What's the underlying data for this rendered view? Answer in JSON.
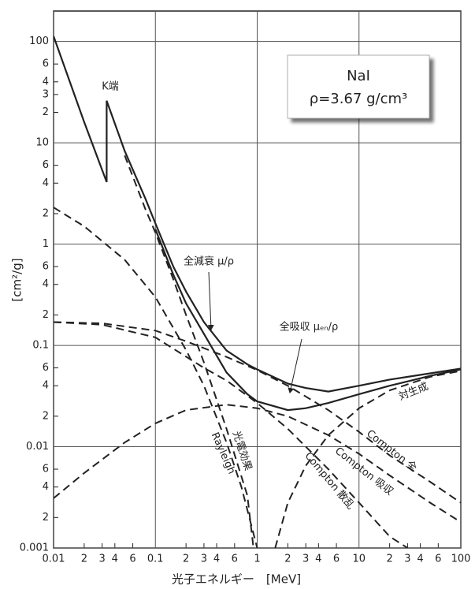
{
  "chart_data": {
    "type": "line",
    "log_x": true,
    "log_y": true,
    "grid": true,
    "xlim": [
      0.01,
      100
    ],
    "ylim": [
      0.001,
      200
    ],
    "x_label": "光子エネルギー　[MeV]",
    "y_label": "[cm²/g]",
    "box_lines": [
      "NaI",
      "ρ=3.67 g/cm³"
    ],
    "annotations": [
      "K端"
    ],
    "xticks": [
      0.01,
      {
        "value": 0.02,
        "label": "2"
      },
      {
        "value": 0.03,
        "label": "3"
      },
      {
        "value": 0.04,
        "label": "4"
      },
      {
        "value": 0.06,
        "label": "6"
      },
      0.1,
      {
        "value": 0.2,
        "label": "2"
      },
      {
        "value": 0.3,
        "label": "3"
      },
      {
        "value": 0.4,
        "label": "4"
      },
      {
        "value": 0.6,
        "label": "6"
      },
      1,
      2,
      3,
      4,
      6,
      10,
      {
        "value": 20,
        "label": "2"
      },
      {
        "value": 30,
        "label": "3"
      },
      {
        "value": 40,
        "label": "4"
      },
      {
        "value": 60,
        "label": "6"
      },
      100
    ],
    "yticks": [
      0.001,
      {
        "value": 0.002,
        "label": "2"
      },
      {
        "value": 0.004,
        "label": "4"
      },
      {
        "value": 0.006,
        "label": "6"
      },
      0.01,
      {
        "value": 0.02,
        "label": "2"
      },
      {
        "value": 0.04,
        "label": "4"
      },
      {
        "value": 0.06,
        "label": "6"
      },
      0.1,
      {
        "value": 0.2,
        "label": "2"
      },
      {
        "value": 0.4,
        "label": "4"
      },
      {
        "value": 0.6,
        "label": "6"
      },
      1,
      2,
      4,
      6,
      10,
      {
        "value": 20,
        "label": "2"
      },
      {
        "value": 30,
        "label": "3"
      },
      {
        "value": 40,
        "label": "4"
      },
      {
        "value": 60,
        "label": "6"
      },
      100
    ],
    "series": [
      {
        "name": "全減衰 μ/ρ",
        "color": "#222222",
        "dashed": false,
        "x": [
          0.01,
          0.02,
          0.0332,
          0.0332,
          0.05,
          0.08,
          0.1,
          0.15,
          0.2,
          0.3,
          0.5,
          0.8,
          1,
          2,
          3,
          5,
          10,
          20,
          50,
          100
        ],
        "values": [
          113,
          16,
          4.1,
          26,
          8.3,
          2.8,
          1.6,
          0.6,
          0.34,
          0.17,
          0.089,
          0.065,
          0.058,
          0.042,
          0.038,
          0.035,
          0.04,
          0.046,
          0.053,
          0.059
        ]
      },
      {
        "name": "全吸収 μₑₙ/ρ",
        "color": "#222222",
        "dashed": false,
        "x": [
          0.1,
          0.15,
          0.2,
          0.3,
          0.5,
          0.8,
          1,
          2,
          3,
          5,
          10,
          20,
          50,
          100
        ],
        "values": [
          1.4,
          0.5,
          0.26,
          0.13,
          0.054,
          0.033,
          0.028,
          0.023,
          0.024,
          0.027,
          0.033,
          0.04,
          0.05,
          0.058
        ]
      },
      {
        "name": "光電効果",
        "color": "#222222",
        "dashed": true,
        "x": [
          0.05,
          0.08,
          0.1,
          0.15,
          0.2,
          0.3,
          0.5,
          0.8,
          0.92
        ],
        "values": [
          7.5,
          2.2,
          1.3,
          0.45,
          0.2,
          0.068,
          0.015,
          0.0033,
          0.001
        ]
      },
      {
        "name": "Rayleigh",
        "color": "#222222",
        "dashed": true,
        "x": [
          0.01,
          0.02,
          0.05,
          0.1,
          0.2,
          0.3,
          0.5,
          0.7,
          1
        ],
        "values": [
          2.3,
          1.5,
          0.7,
          0.3,
          0.09,
          0.04,
          0.011,
          0.004,
          0.001
        ]
      },
      {
        "name": "Compton 全",
        "color": "#222222",
        "dashed": true,
        "x": [
          0.01,
          0.03,
          0.1,
          0.2,
          0.5,
          1,
          2,
          5,
          10,
          20,
          50,
          100
        ],
        "values": [
          0.17,
          0.165,
          0.14,
          0.11,
          0.077,
          0.057,
          0.04,
          0.023,
          0.014,
          0.0082,
          0.0045,
          0.0028
        ]
      },
      {
        "name": "Compton 吸収",
        "color": "#222222",
        "dashed": true,
        "x": [
          0.01,
          0.02,
          0.05,
          0.1,
          0.2,
          0.5,
          1,
          2,
          5,
          10,
          20,
          50,
          100
        ],
        "values": [
          0.0031,
          0.0055,
          0.011,
          0.017,
          0.023,
          0.026,
          0.024,
          0.02,
          0.013,
          0.0085,
          0.0052,
          0.0028,
          0.0018
        ]
      },
      {
        "name": "Compton 散乱",
        "color": "#222222",
        "dashed": true,
        "x": [
          0.01,
          0.03,
          0.1,
          0.3,
          0.5,
          1,
          2,
          5,
          10,
          20,
          30
        ],
        "values": [
          0.17,
          0.16,
          0.12,
          0.06,
          0.045,
          0.027,
          0.015,
          0.006,
          0.0028,
          0.0013,
          0.001
        ]
      },
      {
        "name": "対生成",
        "color": "#222222",
        "dashed": true,
        "x": [
          1.5,
          2,
          3,
          5,
          10,
          20,
          50,
          100
        ],
        "values": [
          0.001,
          0.0028,
          0.0065,
          0.013,
          0.024,
          0.036,
          0.049,
          0.056
        ]
      }
    ]
  }
}
